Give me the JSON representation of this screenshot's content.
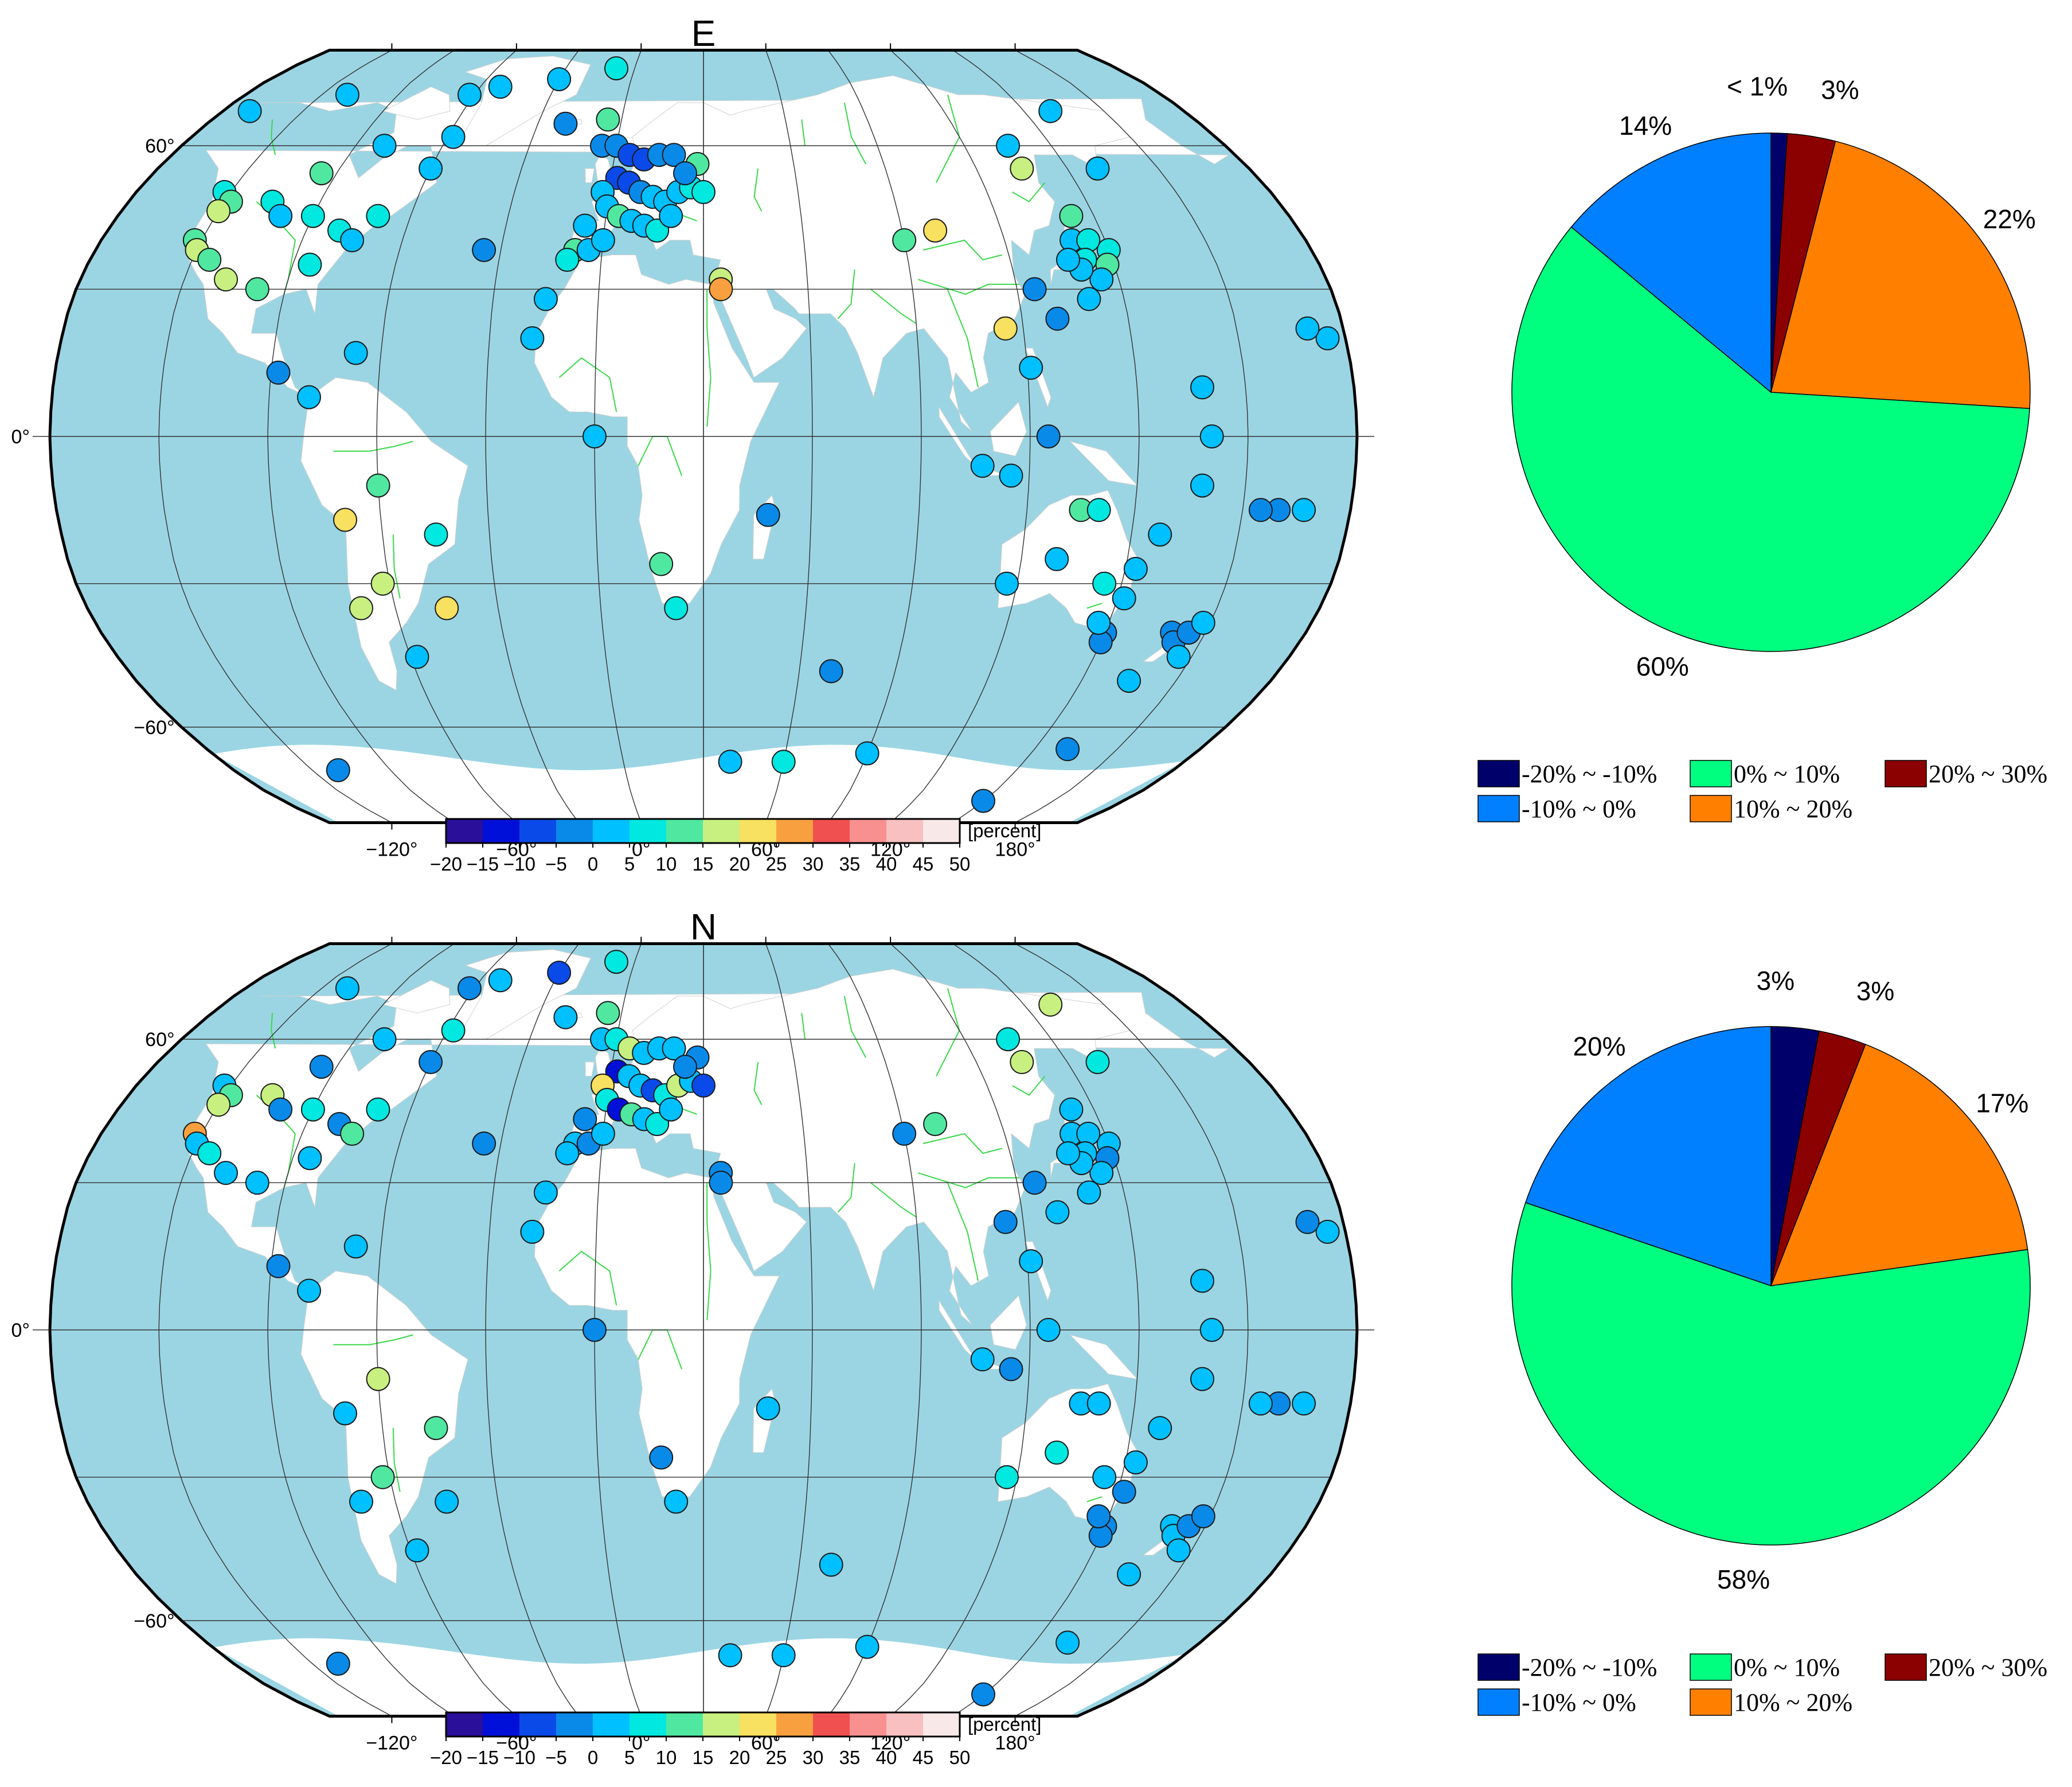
{
  "colorbar": {
    "unit": "[percent]",
    "ticks": [
      "−20",
      "−15",
      "−10",
      "−5",
      "0",
      "5",
      "10",
      "15",
      "20",
      "25",
      "30",
      "35",
      "40",
      "45",
      "50"
    ],
    "colors": [
      "#2a0f9a",
      "#0010d8",
      "#0a4ae8",
      "#0a8ae8",
      "#00c0ff",
      "#00e8e0",
      "#50e8a0",
      "#c8f080",
      "#f8e060",
      "#f8a040",
      "#f05050",
      "#f89090",
      "#f8c0c0",
      "#f8e8e8"
    ]
  },
  "map": {
    "lat_labels": [
      "60°",
      "0°",
      "−60°"
    ],
    "lon_labels": [
      "−120°",
      "−60°",
      "0°",
      "60°",
      "120°",
      "180°"
    ],
    "ocean_color": "#9bd5e3",
    "land_color": "#ffffff",
    "river_color": "#3ad84a"
  },
  "legend": {
    "items": [
      {
        "label": "-20% ~ -10%",
        "color": "#00006b"
      },
      {
        "label": "0% ~ 10%",
        "color": "#00ff7f"
      },
      {
        "label": "20% ~ 30%",
        "color": "#8b0000"
      },
      {
        "label": "-10% ~ 0%",
        "color": "#0080ff"
      },
      {
        "label": "10% ~ 20%",
        "color": "#ff7f00"
      }
    ]
  },
  "chart_data": [
    {
      "type": "scatter",
      "title": "E",
      "colorbar_unit": "[percent]",
      "points": [
        [
          -62,
          72,
          1
        ],
        [
          -52,
          74,
          2
        ],
        [
          -30,
          76,
          4
        ],
        [
          -8,
          79,
          5
        ],
        [
          -140,
          68,
          3
        ],
        [
          -110,
          72,
          2
        ],
        [
          -80,
          60,
          4
        ],
        [
          -58,
          62,
          0
        ],
        [
          -60,
          55,
          1
        ],
        [
          -95,
          54,
          12
        ],
        [
          -122,
          50,
          8
        ],
        [
          -118,
          48,
          14
        ],
        [
          -120,
          46,
          15
        ],
        [
          -105,
          48,
          8
        ],
        [
          -100,
          45,
          2
        ],
        [
          -90,
          45,
          7
        ],
        [
          -80,
          42,
          5
        ],
        [
          -75,
          40,
          3
        ],
        [
          -70,
          45,
          6
        ],
        [
          -122,
          40,
          14
        ],
        [
          -120,
          38,
          17
        ],
        [
          -115,
          36,
          13
        ],
        [
          -108,
          32,
          18
        ],
        [
          -98,
          30,
          10
        ],
        [
          -85,
          35,
          8
        ],
        [
          -67,
          17,
          2
        ],
        [
          -88,
          13,
          -2
        ],
        [
          -79,
          8,
          4
        ],
        [
          -60,
          -10,
          12
        ],
        [
          -70,
          -17,
          22
        ],
        [
          -62,
          -30,
          16
        ],
        [
          -70,
          -35,
          17
        ],
        [
          -58,
          -45,
          2
        ],
        [
          -45,
          -35,
          20
        ],
        [
          -45,
          -20,
          9
        ],
        [
          -110,
          -70,
          -3
        ],
        [
          -20,
          65,
          -2
        ],
        [
          -5,
          66,
          11
        ],
        [
          -5,
          60,
          -4
        ],
        [
          0,
          60,
          -5
        ],
        [
          5,
          58,
          -6
        ],
        [
          10,
          57,
          -7
        ],
        [
          15,
          58,
          -5
        ],
        [
          20,
          58,
          -2
        ],
        [
          2,
          53,
          -8
        ],
        [
          6,
          52,
          -7
        ],
        [
          10,
          50,
          -4
        ],
        [
          14,
          49,
          2
        ],
        [
          18,
          48,
          3
        ],
        [
          22,
          50,
          4
        ],
        [
          26,
          51,
          8
        ],
        [
          30,
          50,
          5
        ],
        [
          28,
          56,
          11
        ],
        [
          24,
          54,
          -1
        ],
        [
          -2,
          50,
          3
        ],
        [
          0,
          47,
          1
        ],
        [
          4,
          45,
          14
        ],
        [
          8,
          44,
          4
        ],
        [
          12,
          43,
          4
        ],
        [
          16,
          42,
          9
        ],
        [
          20,
          45,
          2
        ],
        [
          -6,
          43,
          1
        ],
        [
          -8,
          38,
          11
        ],
        [
          -4,
          38,
          2
        ],
        [
          0,
          40,
          4
        ],
        [
          -10,
          36,
          9
        ],
        [
          -15,
          28,
          0
        ],
        [
          -18,
          20,
          1
        ],
        [
          0,
          0,
          4
        ],
        [
          -35,
          38,
          -1
        ],
        [
          35,
          32,
          15
        ],
        [
          35,
          30,
          25
        ],
        [
          18,
          -26,
          10
        ],
        [
          22,
          -35,
          7
        ],
        [
          48,
          -16,
          -1
        ],
        [
          70,
          -48,
          -4
        ],
        [
          40,
          -68,
          3
        ],
        [
          60,
          -68,
          8
        ],
        [
          90,
          -66,
          3
        ],
        [
          90,
          40,
          12
        ],
        [
          100,
          42,
          20
        ],
        [
          115,
          22,
          23
        ],
        [
          140,
          40,
          1
        ],
        [
          125,
          30,
          -4
        ],
        [
          135,
          60,
          3
        ],
        [
          135,
          55,
          18
        ],
        [
          160,
          68,
          2
        ],
        [
          160,
          55,
          3
        ],
        [
          150,
          38,
          6
        ],
        [
          148,
          35,
          12
        ],
        [
          145,
          32,
          3
        ],
        [
          140,
          28,
          2
        ],
        [
          143,
          45,
          10
        ],
        [
          145,
          40,
          6
        ],
        [
          142,
          36,
          7
        ],
        [
          140,
          34,
          3
        ],
        [
          137,
          36,
          3
        ],
        [
          130,
          24,
          -3
        ],
        [
          121,
          14,
          2
        ],
        [
          107,
          -6,
          0
        ],
        [
          115,
          -8,
          1
        ],
        [
          125,
          0,
          -2
        ],
        [
          135,
          -15,
          12
        ],
        [
          130,
          -25,
          3
        ],
        [
          117,
          -30,
          3
        ],
        [
          150,
          -40,
          -2
        ],
        [
          150,
          -42,
          -4
        ],
        [
          147,
          -38,
          1
        ],
        [
          152,
          -33,
          3
        ],
        [
          153,
          -27,
          4
        ],
        [
          145,
          -30,
          8
        ],
        [
          158,
          -20,
          2
        ],
        [
          140,
          -15,
          5
        ],
        [
          170,
          0,
          1
        ],
        [
          168,
          10,
          3
        ],
        [
          168,
          -10,
          2
        ],
        [
          170,
          -40,
          -2
        ],
        [
          172,
          -42,
          -1
        ],
        [
          175,
          -40,
          -3
        ],
        [
          178,
          -38,
          0
        ],
        [
          176,
          -45,
          0
        ],
        [
          165,
          -50,
          1
        ],
        [
          162,
          -65,
          -1
        ],
        [
          150,
          -78,
          -3
        ],
        [
          -163,
          -15,
          2
        ],
        [
          -170,
          -15,
          -2
        ],
        [
          -155,
          20,
          3
        ],
        [
          -160,
          22,
          3
        ],
        [
          -175,
          -15,
          -1
        ]
      ]
    },
    {
      "type": "pie",
      "title": "E",
      "slices": [
        {
          "category": "-20% ~ -10%",
          "value": 1,
          "label": "< 1%"
        },
        {
          "category": "20% ~ 30%",
          "value": 3,
          "label": "3%"
        },
        {
          "category": "10% ~ 20%",
          "value": 22,
          "label": "22%"
        },
        {
          "category": "0% ~ 10%",
          "value": 60,
          "label": "60%"
        },
        {
          "category": "-10% ~ 0%",
          "value": 14,
          "label": "14%"
        }
      ]
    },
    {
      "type": "scatter",
      "title": "N",
      "colorbar_unit": "[percent]",
      "points": [
        [
          -62,
          72,
          -3
        ],
        [
          -52,
          74,
          3
        ],
        [
          -30,
          76,
          -8
        ],
        [
          -8,
          79,
          8
        ],
        [
          -110,
          72,
          3
        ],
        [
          -80,
          60,
          2
        ],
        [
          -58,
          62,
          6
        ],
        [
          -60,
          55,
          -1
        ],
        [
          -95,
          54,
          -2
        ],
        [
          -122,
          50,
          3
        ],
        [
          -118,
          48,
          14
        ],
        [
          -120,
          46,
          16
        ],
        [
          -105,
          48,
          15
        ],
        [
          -100,
          45,
          -2
        ],
        [
          -90,
          45,
          7
        ],
        [
          -80,
          42,
          -4
        ],
        [
          -75,
          40,
          12
        ],
        [
          -70,
          45,
          6
        ],
        [
          -122,
          40,
          25
        ],
        [
          -120,
          38,
          2
        ],
        [
          -115,
          36,
          5
        ],
        [
          -108,
          32,
          4
        ],
        [
          -98,
          30,
          3
        ],
        [
          -85,
          35,
          4
        ],
        [
          -67,
          17,
          1
        ],
        [
          -88,
          13,
          -2
        ],
        [
          -79,
          8,
          4
        ],
        [
          -60,
          -10,
          15
        ],
        [
          -70,
          -17,
          2
        ],
        [
          -62,
          -30,
          14
        ],
        [
          -70,
          -35,
          1
        ],
        [
          -58,
          -45,
          3
        ],
        [
          -45,
          -35,
          2
        ],
        [
          -45,
          -20,
          12
        ],
        [
          -110,
          -70,
          -3
        ],
        [
          -20,
          65,
          2
        ],
        [
          -5,
          66,
          14
        ],
        [
          -5,
          60,
          3
        ],
        [
          0,
          60,
          8
        ],
        [
          5,
          58,
          17
        ],
        [
          10,
          57,
          4
        ],
        [
          15,
          58,
          4
        ],
        [
          20,
          58,
          3
        ],
        [
          2,
          53,
          -14
        ],
        [
          6,
          52,
          3
        ],
        [
          10,
          50,
          2
        ],
        [
          14,
          49,
          -6
        ],
        [
          18,
          48,
          8
        ],
        [
          22,
          50,
          18
        ],
        [
          26,
          51,
          4
        ],
        [
          30,
          50,
          -6
        ],
        [
          28,
          56,
          -2
        ],
        [
          24,
          54,
          -5
        ],
        [
          -2,
          50,
          22
        ],
        [
          0,
          47,
          7
        ],
        [
          4,
          45,
          -14
        ],
        [
          8,
          44,
          12
        ],
        [
          12,
          43,
          4
        ],
        [
          16,
          42,
          5
        ],
        [
          20,
          45,
          3
        ],
        [
          -6,
          43,
          -3
        ],
        [
          -8,
          38,
          4
        ],
        [
          -4,
          38,
          -1
        ],
        [
          0,
          40,
          3
        ],
        [
          -10,
          36,
          0
        ],
        [
          -15,
          28,
          1
        ],
        [
          -18,
          20,
          2
        ],
        [
          0,
          0,
          -2
        ],
        [
          -35,
          38,
          -2
        ],
        [
          35,
          32,
          -1
        ],
        [
          35,
          30,
          -1
        ],
        [
          18,
          -26,
          -2
        ],
        [
          22,
          -35,
          1
        ],
        [
          48,
          -16,
          2
        ],
        [
          70,
          -48,
          3
        ],
        [
          40,
          -68,
          1
        ],
        [
          60,
          -68,
          3
        ],
        [
          90,
          -66,
          3
        ],
        [
          90,
          40,
          -2
        ],
        [
          100,
          42,
          14
        ],
        [
          115,
          22,
          -1
        ],
        [
          140,
          40,
          3
        ],
        [
          125,
          30,
          -3
        ],
        [
          135,
          60,
          8
        ],
        [
          135,
          55,
          16
        ],
        [
          160,
          68,
          18
        ],
        [
          160,
          55,
          5
        ],
        [
          150,
          38,
          4
        ],
        [
          148,
          35,
          -4
        ],
        [
          145,
          32,
          1
        ],
        [
          140,
          28,
          2
        ],
        [
          143,
          45,
          3
        ],
        [
          145,
          40,
          3
        ],
        [
          142,
          36,
          4
        ],
        [
          140,
          34,
          3
        ],
        [
          137,
          36,
          4
        ],
        [
          130,
          24,
          2
        ],
        [
          121,
          14,
          1
        ],
        [
          107,
          -6,
          1
        ],
        [
          115,
          -8,
          -2
        ],
        [
          125,
          0,
          2
        ],
        [
          135,
          -15,
          4
        ],
        [
          130,
          -25,
          9
        ],
        [
          117,
          -30,
          9
        ],
        [
          150,
          -40,
          -3
        ],
        [
          150,
          -42,
          -4
        ],
        [
          147,
          -38,
          -1
        ],
        [
          152,
          -33,
          -2
        ],
        [
          153,
          -27,
          2
        ],
        [
          145,
          -30,
          3
        ],
        [
          158,
          -20,
          3
        ],
        [
          140,
          -15,
          4
        ],
        [
          170,
          0,
          2
        ],
        [
          168,
          10,
          1
        ],
        [
          168,
          -10,
          2
        ],
        [
          170,
          -40,
          0
        ],
        [
          172,
          -42,
          0
        ],
        [
          175,
          -40,
          -1
        ],
        [
          178,
          -38,
          -1
        ],
        [
          176,
          -45,
          1
        ],
        [
          165,
          -50,
          2
        ],
        [
          162,
          -65,
          2
        ],
        [
          150,
          -78,
          -3
        ],
        [
          -163,
          -15,
          0
        ],
        [
          -170,
          -15,
          -1
        ],
        [
          -155,
          20,
          0
        ],
        [
          -160,
          22,
          -1
        ],
        [
          -175,
          -15,
          1
        ]
      ]
    },
    {
      "type": "pie",
      "title": "N",
      "slices": [
        {
          "category": "-20% ~ -10%",
          "value": 3,
          "label": "3%"
        },
        {
          "category": "20% ~ 30%",
          "value": 3,
          "label": "3%"
        },
        {
          "category": "10% ~ 20%",
          "value": 17,
          "label": "17%"
        },
        {
          "category": "0% ~ 10%",
          "value": 58,
          "label": "58%"
        },
        {
          "category": "-10% ~ 0%",
          "value": 20,
          "label": "20%"
        }
      ]
    }
  ]
}
